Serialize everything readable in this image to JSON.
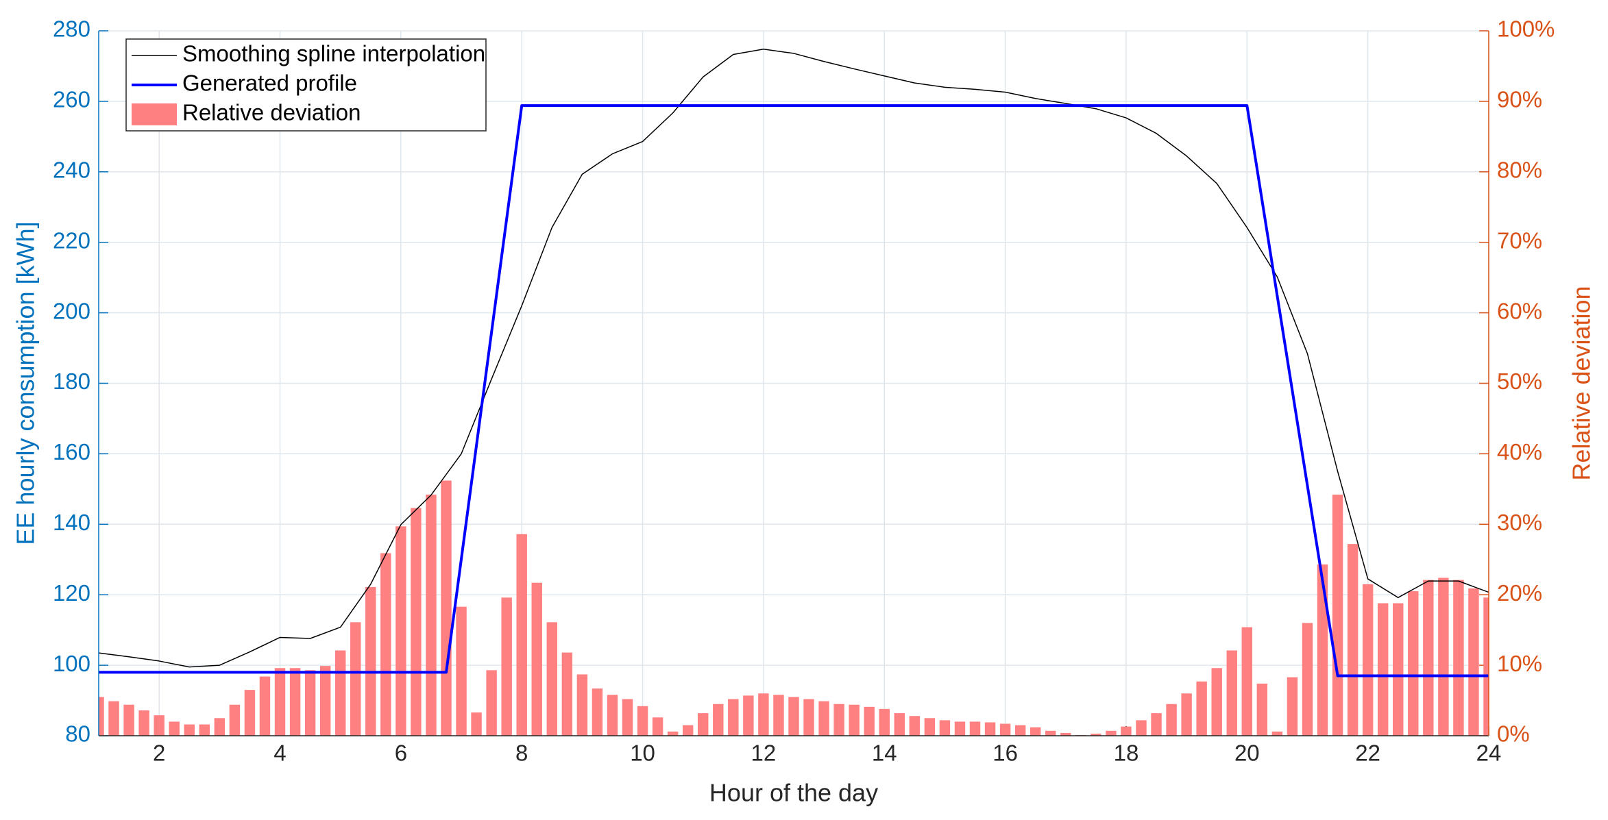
{
  "chart_data": {
    "type": "combo",
    "xlabel": "Hour of the day",
    "ylabel": "EE hourly consumption [kWh]",
    "y2label": "Relative deviation",
    "xlim": [
      1,
      24
    ],
    "xticks": [
      2,
      4,
      6,
      8,
      10,
      12,
      14,
      16,
      18,
      20,
      22,
      24
    ],
    "ylim": [
      80,
      280
    ],
    "yticks": [
      80,
      100,
      120,
      140,
      160,
      180,
      200,
      220,
      240,
      260,
      280
    ],
    "y2lim": [
      0,
      100
    ],
    "y2ticks": [
      {
        "value": 0,
        "label": "0%"
      },
      {
        "value": 10,
        "label": "10%"
      },
      {
        "value": 20,
        "label": "20%"
      },
      {
        "value": 30,
        "label": "30%"
      },
      {
        "value": 40,
        "label": "40%"
      },
      {
        "value": 50,
        "label": "50%"
      },
      {
        "value": 60,
        "label": "60%"
      },
      {
        "value": 70,
        "label": "70%"
      },
      {
        "value": 80,
        "label": "80%"
      },
      {
        "value": 90,
        "label": "90%"
      },
      {
        "value": 100,
        "label": "100%"
      }
    ],
    "grid": true,
    "legend": "upper-left",
    "ycolor": "#0072bd",
    "y2color": "#d95319",
    "series": [
      {
        "name": "Relative deviation",
        "type": "bar",
        "axis": "y2",
        "color": "#ff8080",
        "x": [
          1,
          1.25,
          1.5,
          1.75,
          2,
          2.25,
          2.5,
          2.75,
          3,
          3.25,
          3.5,
          3.75,
          4,
          4.25,
          4.5,
          4.75,
          5,
          5.25,
          5.5,
          5.75,
          6,
          6.25,
          6.5,
          6.75,
          7,
          7.25,
          7.5,
          7.75,
          8,
          8.25,
          8.5,
          8.75,
          9,
          9.25,
          9.5,
          9.75,
          10,
          10.25,
          10.5,
          10.75,
          11,
          11.25,
          11.5,
          11.75,
          12,
          12.25,
          12.5,
          12.75,
          13,
          13.25,
          13.5,
          13.75,
          14,
          14.25,
          14.5,
          14.75,
          15,
          15.25,
          15.5,
          15.75,
          16,
          16.25,
          16.5,
          16.75,
          17,
          17.25,
          17.5,
          17.75,
          18,
          18.25,
          18.5,
          18.75,
          19,
          19.25,
          19.5,
          19.75,
          20,
          20.25,
          20.5,
          20.75,
          21,
          21.25,
          21.5,
          21.75,
          22,
          22.25,
          22.5,
          22.75,
          23,
          23.25,
          23.5,
          23.75,
          24
        ],
        "values": [
          5.5,
          4.9,
          4.4,
          3.6,
          2.9,
          2.0,
          1.6,
          1.6,
          2.5,
          4.4,
          6.5,
          8.4,
          9.6,
          9.6,
          9.3,
          9.9,
          12.1,
          16.1,
          21.1,
          25.9,
          29.7,
          32.3,
          34.2,
          36.2,
          18.3,
          3.3,
          9.3,
          19.6,
          28.6,
          21.7,
          16.1,
          11.8,
          8.7,
          6.7,
          5.8,
          5.2,
          4.2,
          2.6,
          0.6,
          1.5,
          3.2,
          4.5,
          5.2,
          5.7,
          6.0,
          5.8,
          5.5,
          5.2,
          4.9,
          4.5,
          4.4,
          4.1,
          3.8,
          3.2,
          2.8,
          2.5,
          2.2,
          2.0,
          2.0,
          1.9,
          1.7,
          1.5,
          1.2,
          0.7,
          0.4,
          0.1,
          0.3,
          0.7,
          1.3,
          2.2,
          3.2,
          4.5,
          6.0,
          7.7,
          9.6,
          12.1,
          15.4,
          7.4,
          0.6,
          8.3,
          16.0,
          24.3,
          34.2,
          27.2,
          21.5,
          18.8,
          18.8,
          20.5,
          22.1,
          22.4,
          22.1,
          20.9,
          19.6
        ]
      },
      {
        "name": "Smoothing spline interpolation",
        "type": "line",
        "axis": "y",
        "color": "#000000",
        "x": [
          1,
          1.5,
          2,
          2.5,
          3,
          3.5,
          4,
          4.5,
          5,
          5.5,
          6,
          6.5,
          7,
          7.5,
          8,
          8.5,
          9,
          9.5,
          10,
          10.5,
          11,
          11.5,
          12,
          12.5,
          13,
          13.5,
          14,
          14.5,
          15,
          15.5,
          16,
          16.5,
          17,
          17.5,
          18,
          18.5,
          19,
          19.5,
          20,
          20.5,
          21,
          21.5,
          22,
          22.5,
          23,
          23.5,
          24
        ],
        "values": [
          103.5,
          102.4,
          101.2,
          99.5,
          100,
          103.8,
          107.9,
          107.6,
          110.8,
          123,
          139.9,
          148.3,
          160,
          181.2,
          202,
          224.2,
          239.3,
          245.1,
          248.6,
          256.7,
          266.9,
          273.3,
          274.8,
          273.6,
          271.3,
          269.2,
          267.2,
          265.2,
          264,
          263.4,
          262.6,
          260.8,
          259.4,
          257.9,
          255.3,
          250.9,
          244.5,
          236.7,
          224.2,
          210.2,
          188.4,
          155,
          124.5,
          119.2,
          123.9,
          123.9,
          120.7
        ]
      },
      {
        "name": "Generated profile",
        "type": "line",
        "axis": "y",
        "color": "#0000ff",
        "x": [
          1,
          6.75,
          8,
          20,
          21.5,
          24
        ],
        "values": [
          98,
          98,
          258.8,
          258.8,
          97,
          97
        ]
      }
    ]
  }
}
